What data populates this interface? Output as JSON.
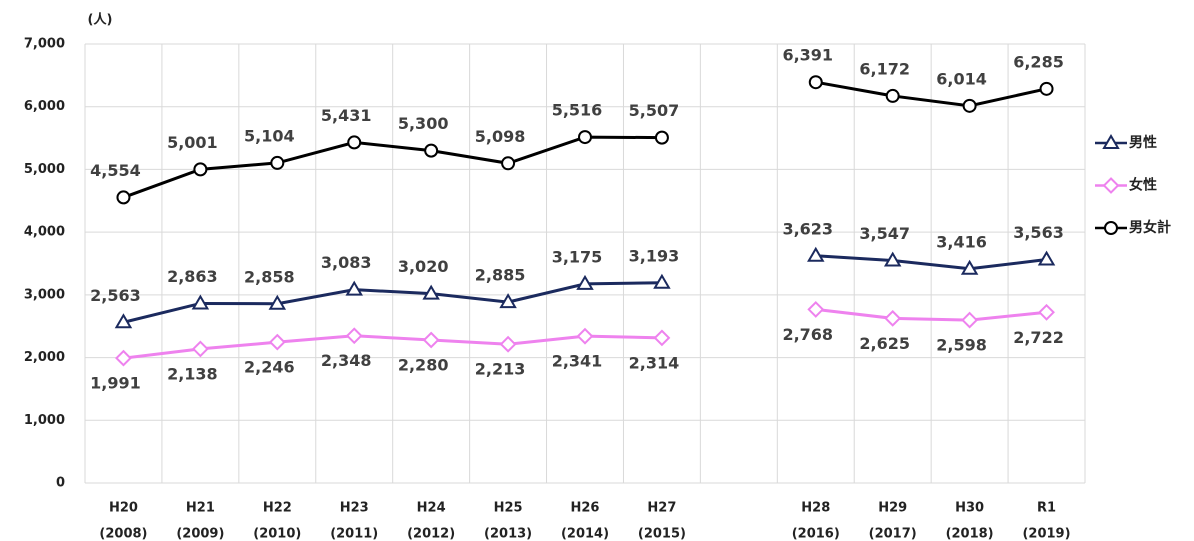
{
  "chart_data": {
    "type": "line",
    "y_unit": "(人)",
    "categories": [
      "H20",
      "H21",
      "H22",
      "H23",
      "H24",
      "H25",
      "H26",
      "H27",
      null,
      "H28",
      "H29",
      "H30",
      "R1"
    ],
    "category_years": [
      "(2008)",
      "(2009)",
      "(2010)",
      "(2011)",
      "(2012)",
      "(2013)",
      "(2014)",
      "(2015)",
      null,
      "(2016)",
      "(2017)",
      "(2018)",
      "(2019)"
    ],
    "series": [
      {
        "name": "男性",
        "color": "#1b2a5e",
        "marker": "triangle",
        "label_side": "above",
        "values": [
          2563,
          2863,
          2858,
          3083,
          3020,
          2885,
          3175,
          3193,
          null,
          3623,
          3547,
          3416,
          3563
        ],
        "value_labels": [
          "2,563",
          "2,863",
          "2,858",
          "3,083",
          "3,020",
          "2,885",
          "3,175",
          "3,193",
          null,
          "3,623",
          "3,547",
          "3,416",
          "3,563"
        ]
      },
      {
        "name": "女性",
        "color": "#ee82ee",
        "marker": "diamond",
        "label_side": "below",
        "values": [
          1991,
          2138,
          2246,
          2348,
          2280,
          2213,
          2341,
          2314,
          null,
          2768,
          2625,
          2598,
          2722
        ],
        "value_labels": [
          "1,991",
          "2,138",
          "2,246",
          "2,348",
          "2,280",
          "2,213",
          "2,341",
          "2,314",
          null,
          "2,768",
          "2,625",
          "2,598",
          "2,722"
        ]
      },
      {
        "name": "男女計",
        "color": "#000000",
        "marker": "circle",
        "label_side": "above",
        "values": [
          4554,
          5001,
          5104,
          5431,
          5300,
          5098,
          5516,
          5507,
          null,
          6391,
          6172,
          6014,
          6285
        ],
        "value_labels": [
          "4,554",
          "5,001",
          "5,104",
          "5,431",
          "5,300",
          "5,098",
          "5,516",
          "5,507",
          null,
          "6,391",
          "6,172",
          "6,014",
          "6,285"
        ]
      }
    ],
    "ylim": [
      0,
      7000
    ],
    "yticks": [
      0,
      {
        "value": 1000,
        "label": "1,000"
      },
      {
        "value": 2000,
        "label": "2,000"
      },
      {
        "value": 3000,
        "label": "3,000"
      },
      {
        "value": 4000,
        "label": "4,000"
      },
      {
        "value": 5000,
        "label": "5,000"
      },
      {
        "value": 6000,
        "label": "6,000"
      },
      {
        "value": 7000,
        "label": "7,000"
      }
    ],
    "grid": true,
    "legend": "right"
  }
}
